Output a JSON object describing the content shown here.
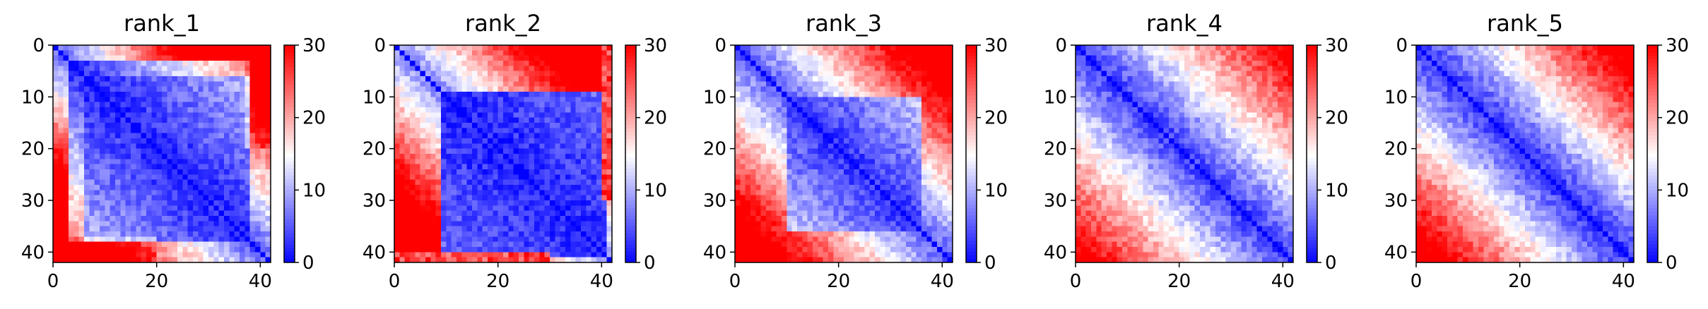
{
  "chart_data": [
    {
      "type": "heatmap",
      "title": "rank_1",
      "profile": 1,
      "x_ticks": [
        "0",
        "20",
        "40"
      ],
      "y_ticks": [
        "0",
        "10",
        "20",
        "30",
        "40"
      ],
      "colorbar_ticks": [
        "0",
        "10",
        "20",
        "30"
      ],
      "xlim": [
        0,
        42
      ],
      "ylim": [
        42,
        0
      ],
      "clim": [
        0,
        30
      ]
    },
    {
      "type": "heatmap",
      "title": "rank_2",
      "profile": 2,
      "x_ticks": [
        "0",
        "20",
        "40"
      ],
      "y_ticks": [
        "0",
        "10",
        "20",
        "30",
        "40"
      ],
      "colorbar_ticks": [
        "0",
        "10",
        "20",
        "30"
      ],
      "xlim": [
        0,
        42
      ],
      "ylim": [
        42,
        0
      ],
      "clim": [
        0,
        30
      ]
    },
    {
      "type": "heatmap",
      "title": "rank_3",
      "profile": 3,
      "x_ticks": [
        "0",
        "20",
        "40"
      ],
      "y_ticks": [
        "0",
        "10",
        "20",
        "30",
        "40"
      ],
      "colorbar_ticks": [
        "0",
        "10",
        "20",
        "30"
      ],
      "xlim": [
        0,
        42
      ],
      "ylim": [
        42,
        0
      ],
      "clim": [
        0,
        30
      ]
    },
    {
      "type": "heatmap",
      "title": "rank_4",
      "profile": 4,
      "x_ticks": [
        "0",
        "20",
        "40"
      ],
      "y_ticks": [
        "0",
        "10",
        "20",
        "30",
        "40"
      ],
      "colorbar_ticks": [
        "0",
        "10",
        "20",
        "30"
      ],
      "xlim": [
        0,
        42
      ],
      "ylim": [
        42,
        0
      ],
      "clim": [
        0,
        30
      ]
    },
    {
      "type": "heatmap",
      "title": "rank_5",
      "profile": 5,
      "x_ticks": [
        "0",
        "20",
        "40"
      ],
      "y_ticks": [
        "0",
        "10",
        "20",
        "30",
        "40"
      ],
      "colorbar_ticks": [
        "0",
        "10",
        "20",
        "30"
      ],
      "xlim": [
        0,
        42
      ],
      "ylim": [
        42,
        0
      ],
      "clim": [
        0,
        30
      ]
    }
  ],
  "colormap": {
    "low": "#0000ff",
    "mid": "#ffffff",
    "high": "#ff0000"
  }
}
